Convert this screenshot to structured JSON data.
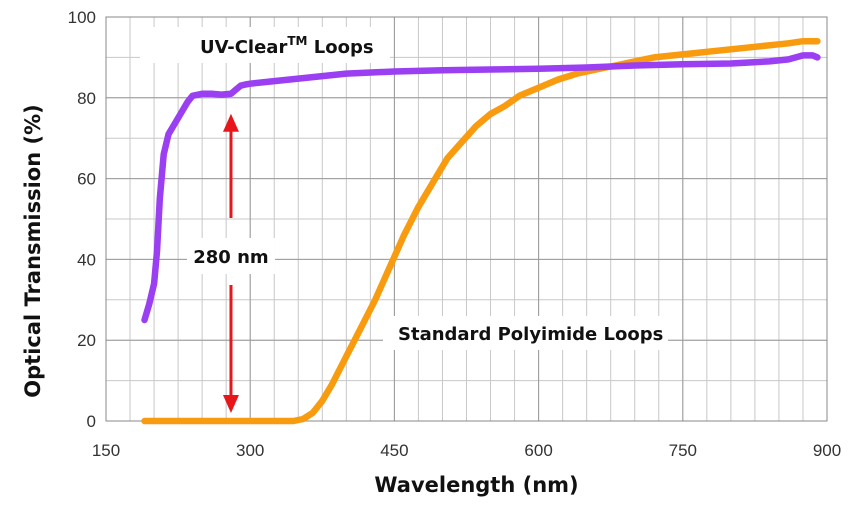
{
  "chart_data": {
    "type": "line",
    "xlabel": "Wavelength (nm)",
    "ylabel": "Optical Transmission (%)",
    "xlim": [
      150,
      900
    ],
    "ylim": [
      0,
      100
    ],
    "x_ticks": [
      150,
      300,
      450,
      600,
      750,
      900
    ],
    "y_ticks": [
      0,
      20,
      40,
      60,
      80,
      100
    ],
    "x_minor_step": 25,
    "y_minor_step": 10,
    "grid": true,
    "series": [
      {
        "name": "UV-Clear Loops",
        "color": "#9B3FF2",
        "x": [
          190,
          195,
          200,
          203,
          206,
          210,
          215,
          220,
          225,
          230,
          235,
          240,
          250,
          260,
          270,
          280,
          285,
          290,
          295,
          300,
          320,
          340,
          360,
          380,
          400,
          450,
          500,
          550,
          600,
          650,
          700,
          750,
          800,
          840,
          860,
          875,
          885,
          890
        ],
        "y": [
          25,
          29,
          34,
          42,
          55,
          66,
          71,
          73,
          75,
          77,
          79,
          80.5,
          81,
          81,
          80.8,
          81,
          82,
          83,
          83.3,
          83.5,
          84,
          84.5,
          85,
          85.5,
          86,
          86.5,
          86.8,
          87,
          87.2,
          87.5,
          88,
          88.3,
          88.5,
          89,
          89.5,
          90.5,
          90.5,
          90
        ]
      },
      {
        "name": "Standard Polyimide Loops",
        "color": "#F99B0F",
        "x": [
          190,
          250,
          300,
          345,
          355,
          365,
          375,
          385,
          400,
          415,
          430,
          445,
          460,
          475,
          490,
          505,
          520,
          535,
          550,
          565,
          580,
          600,
          620,
          640,
          660,
          680,
          700,
          720,
          740,
          760,
          780,
          800,
          820,
          840,
          860,
          875,
          890
        ],
        "y": [
          0,
          0,
          0,
          0,
          0.5,
          2,
          5,
          9,
          16,
          23,
          30,
          38,
          46,
          53,
          59,
          65,
          69,
          73,
          76,
          78,
          80.5,
          82.5,
          84.5,
          86,
          87,
          88,
          89,
          90,
          90.5,
          91,
          91.5,
          92,
          92.5,
          93,
          93.5,
          94,
          94
        ]
      }
    ],
    "annotations": {
      "uv_clear_label": "UV-Clear",
      "uv_clear_superscript": "TM",
      "uv_clear_suffix": " Loops",
      "polyimide_label": "Standard Polyimide Loops",
      "cutoff_label": "280 nm",
      "cutoff_x": 280,
      "cutoff_arrow_from": 0,
      "cutoff_arrow_to": 80,
      "arrow_color": "#E8161B"
    }
  }
}
